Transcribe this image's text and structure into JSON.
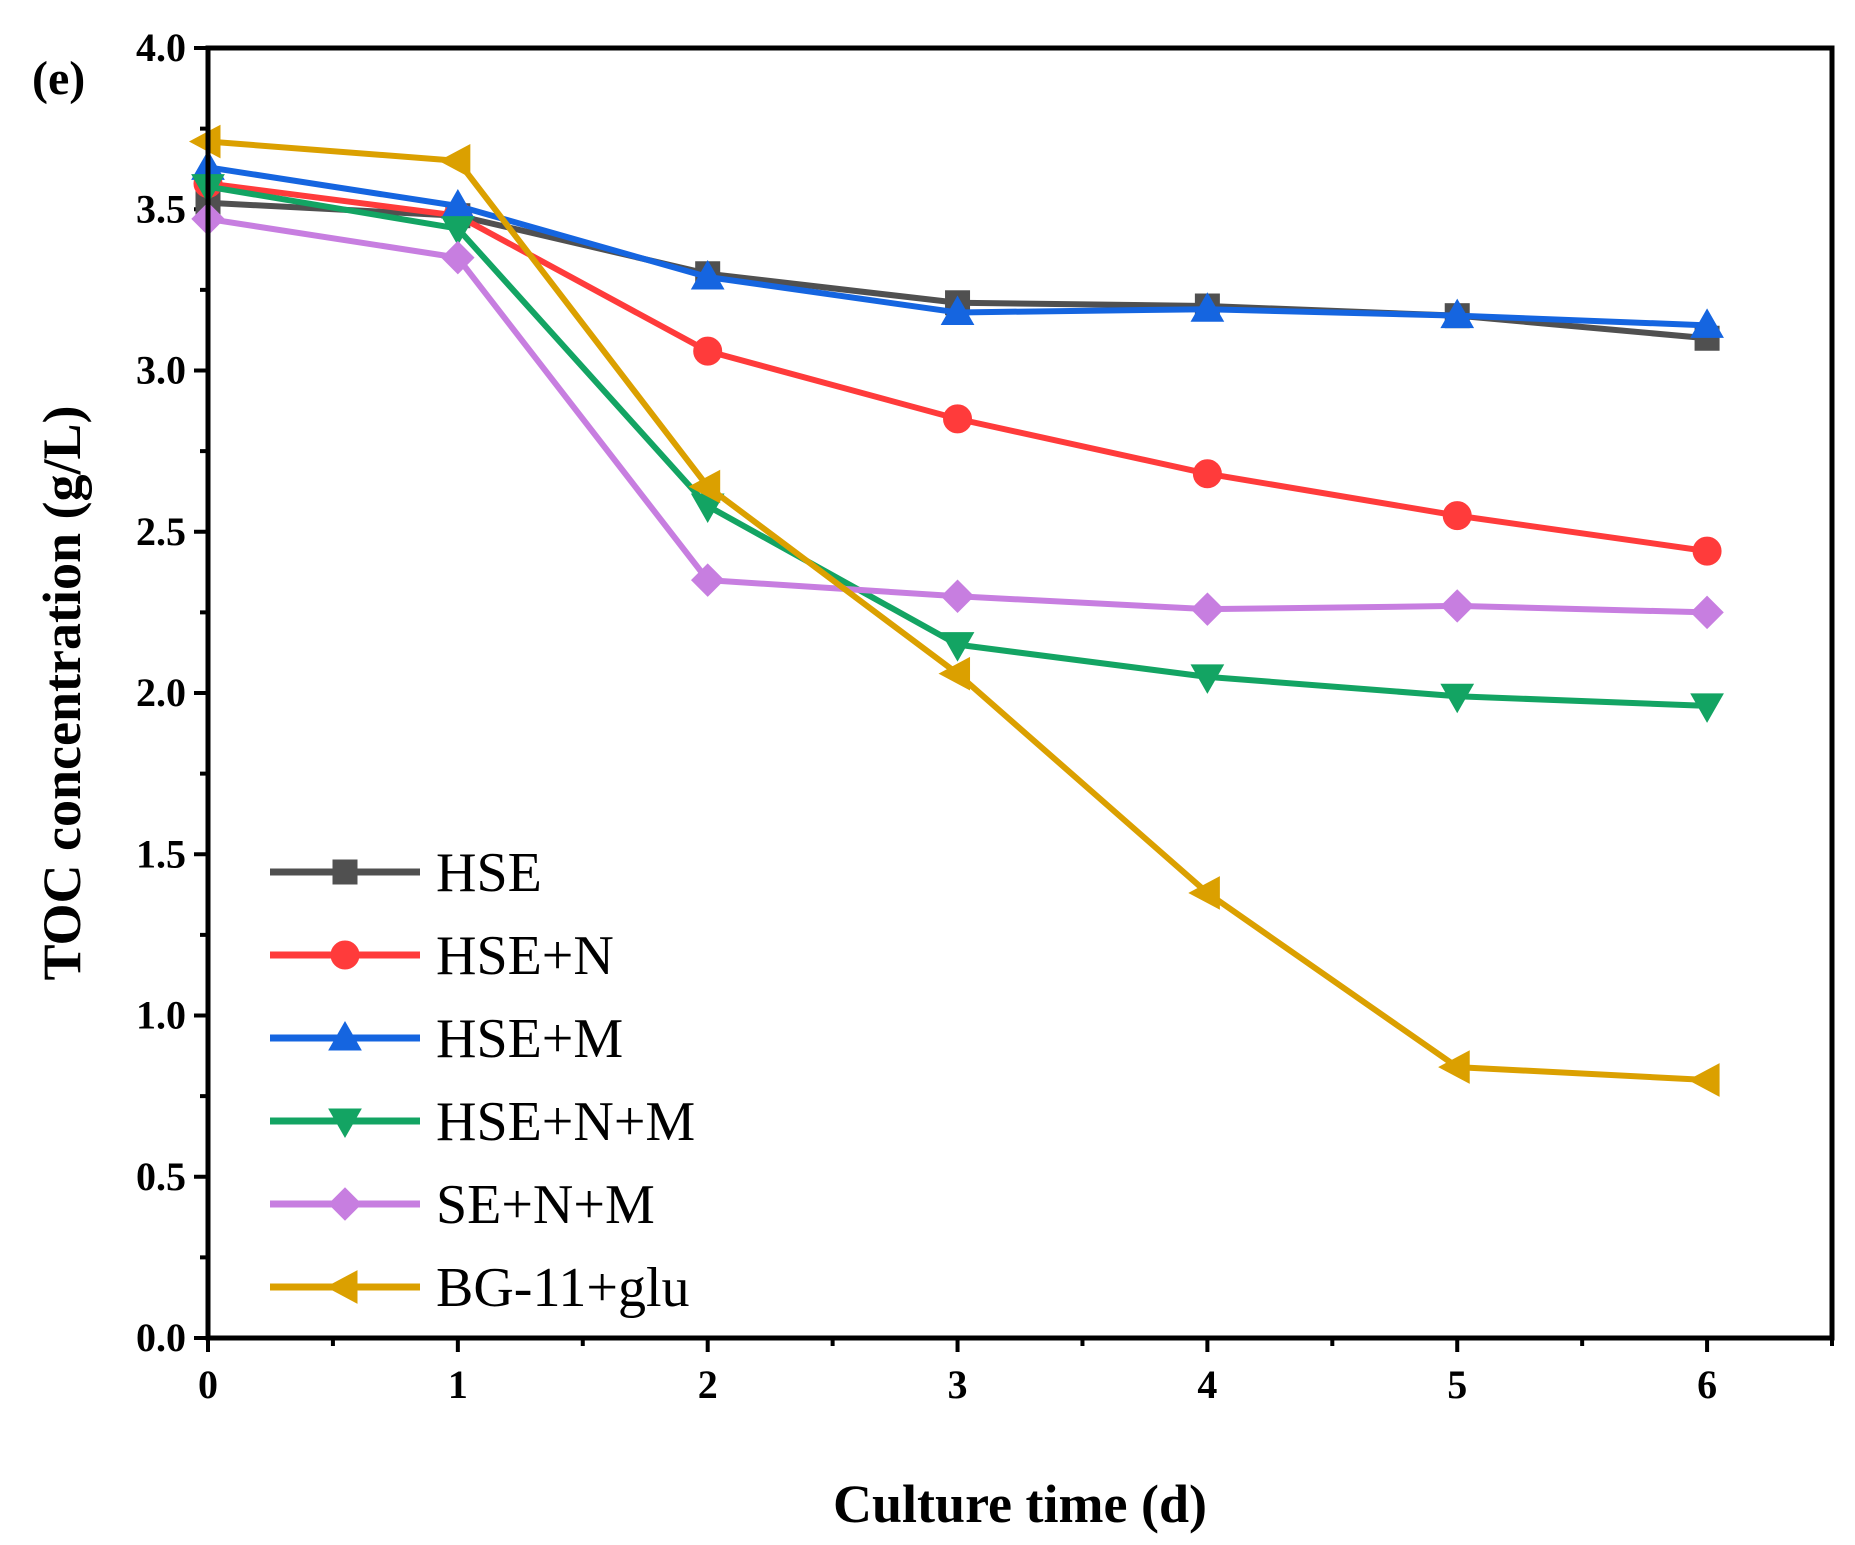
{
  "chart_data": {
    "type": "line",
    "panel_label": "(e)",
    "title": "",
    "xlabel": "Culture time (d)",
    "ylabel": "TOC concentration (g/L)",
    "xlim": [
      0,
      6.5
    ],
    "ylim": [
      0,
      4.0
    ],
    "x": [
      0,
      1,
      2,
      3,
      4,
      5,
      6
    ],
    "xticks": [
      "0",
      "1",
      "2",
      "3",
      "4",
      "5",
      "6"
    ],
    "yticks": [
      "0.0",
      "0.5",
      "1.0",
      "1.5",
      "2.0",
      "2.5",
      "3.0",
      "3.5",
      "4.0"
    ],
    "legend_position": "lower-left",
    "series": [
      {
        "name": "HSE",
        "color": "#505050",
        "marker": "square",
        "values": [
          3.52,
          3.48,
          3.3,
          3.21,
          3.2,
          3.17,
          3.1
        ]
      },
      {
        "name": "HSE+N",
        "color": "#ff3b3b",
        "marker": "circle",
        "values": [
          3.58,
          3.48,
          3.06,
          2.85,
          2.68,
          2.55,
          2.44
        ]
      },
      {
        "name": "HSE+M",
        "color": "#1565e0",
        "marker": "triangle-up",
        "values": [
          3.63,
          3.51,
          3.29,
          3.18,
          3.19,
          3.17,
          3.14
        ]
      },
      {
        "name": "HSE+N+M",
        "color": "#13a463",
        "marker": "triangle-down",
        "values": [
          3.57,
          3.44,
          2.58,
          2.15,
          2.05,
          1.99,
          1.96
        ]
      },
      {
        "name": "SE+N+M",
        "color": "#c77ee0",
        "marker": "diamond",
        "values": [
          3.47,
          3.35,
          2.35,
          2.3,
          2.26,
          2.27,
          2.25
        ]
      },
      {
        "name": "BG-11+glu",
        "color": "#dba000",
        "marker": "triangle-left",
        "values": [
          3.71,
          3.65,
          2.64,
          2.06,
          1.38,
          0.84,
          0.8
        ]
      }
    ]
  }
}
